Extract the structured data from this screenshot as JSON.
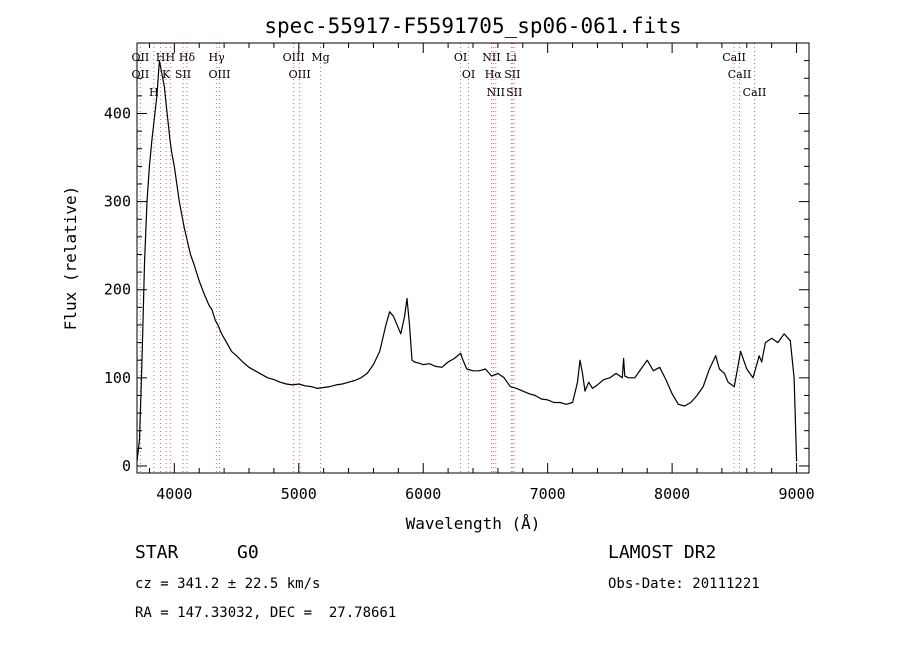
{
  "chart_data": {
    "type": "line",
    "title": "spec-55917-F5591705_sp06-061.fits",
    "xlabel": "Wavelength (Å)",
    "ylabel": "Flux (relative)",
    "xlim": [
      3700,
      9100
    ],
    "ylim": [
      -8,
      480
    ],
    "x_ticks": [
      4000,
      5000,
      6000,
      7000,
      8000,
      9000
    ],
    "y_ticks": [
      0,
      100,
      200,
      300,
      400
    ],
    "grid": false,
    "series": [
      {
        "color": "#000000",
        "x": [
          3700,
          3720,
          3740,
          3760,
          3780,
          3800,
          3820,
          3840,
          3860,
          3880,
          3900,
          3920,
          3935,
          3950,
          3965,
          3980,
          4000,
          4020,
          4040,
          4060,
          4080,
          4100,
          4130,
          4160,
          4200,
          4240,
          4280,
          4300,
          4330,
          4350,
          4380,
          4420,
          4460,
          4500,
          4550,
          4600,
          4650,
          4700,
          4750,
          4800,
          4850,
          4900,
          4950,
          5000,
          5050,
          5100,
          5150,
          5200,
          5250,
          5300,
          5350,
          5400,
          5450,
          5500,
          5550,
          5600,
          5650,
          5700,
          5730,
          5760,
          5790,
          5820,
          5850,
          5870,
          5890,
          5910,
          5930,
          5960,
          6000,
          6050,
          6100,
          6150,
          6200,
          6250,
          6300,
          6320,
          6350,
          6400,
          6450,
          6500,
          6550,
          6600,
          6650,
          6700,
          6750,
          6800,
          6850,
          6900,
          6950,
          7000,
          7050,
          7100,
          7150,
          7200,
          7240,
          7260,
          7280,
          7300,
          7330,
          7360,
          7400,
          7450,
          7500,
          7550,
          7600,
          7610,
          7620,
          7650,
          7700,
          7750,
          7800,
          7850,
          7900,
          7950,
          8000,
          8050,
          8100,
          8150,
          8200,
          8250,
          8300,
          8350,
          8380,
          8420,
          8450,
          8500,
          8550,
          8600,
          8650,
          8700,
          8720,
          8750,
          8800,
          8850,
          8900,
          8950,
          8980,
          9000
        ],
        "values": [
          5,
          30,
          120,
          230,
          300,
          340,
          370,
          395,
          420,
          460,
          445,
          430,
          410,
          390,
          370,
          355,
          340,
          320,
          300,
          285,
          270,
          258,
          240,
          228,
          210,
          195,
          182,
          178,
          165,
          160,
          150,
          140,
          130,
          125,
          118,
          112,
          108,
          104,
          100,
          98,
          95,
          93,
          92,
          93,
          91,
          90,
          88,
          89,
          90,
          92,
          93,
          95,
          97,
          100,
          105,
          115,
          130,
          160,
          175,
          170,
          160,
          150,
          170,
          190,
          160,
          120,
          118,
          117,
          115,
          116,
          113,
          112,
          118,
          122,
          128,
          120,
          110,
          108,
          108,
          110,
          102,
          105,
          100,
          90,
          88,
          85,
          82,
          80,
          76,
          75,
          72,
          72,
          70,
          72,
          95,
          120,
          105,
          85,
          95,
          88,
          92,
          98,
          100,
          105,
          100,
          122,
          102,
          100,
          100,
          110,
          120,
          108,
          112,
          98,
          82,
          70,
          68,
          72,
          80,
          90,
          110,
          125,
          110,
          105,
          95,
          90,
          130,
          110,
          100,
          125,
          118,
          140,
          145,
          140,
          150,
          142,
          100,
          5
        ],
        "comment": "values read off the plot (approximate)"
      }
    ],
    "line_markers": [
      {
        "x": 3727,
        "labels": [
          "OII",
          "OII"
        ]
      },
      {
        "x": 3835,
        "labels": [
          "H"
        ]
      },
      {
        "x": 3889,
        "labels": [
          "H"
        ]
      },
      {
        "x": 3934,
        "labels": [
          "K"
        ]
      },
      {
        "x": 3968,
        "labels": [
          "H"
        ]
      },
      {
        "x": 4070,
        "labels": [
          "SII"
        ]
      },
      {
        "x": 4102,
        "labels": [
          "Hδ"
        ]
      },
      {
        "x": 4340,
        "labels": [
          "Hγ"
        ]
      },
      {
        "x": 4363,
        "labels": [
          "OIII"
        ]
      },
      {
        "x": 4959,
        "labels": [
          "OIII"
        ]
      },
      {
        "x": 5007,
        "labels": [
          "OIII"
        ]
      },
      {
        "x": 5175,
        "labels": [
          "Mg"
        ]
      },
      {
        "x": 6300,
        "labels": [
          "OI"
        ]
      },
      {
        "x": 6364,
        "labels": [
          "OI"
        ]
      },
      {
        "x": 6548,
        "labels": [
          "NII"
        ]
      },
      {
        "x": 6563,
        "labels": [
          "Hα"
        ]
      },
      {
        "x": 6583,
        "labels": [
          "NII"
        ]
      },
      {
        "x": 6708,
        "labels": [
          "Li"
        ]
      },
      {
        "x": 6716,
        "labels": [
          "SII"
        ]
      },
      {
        "x": 6731,
        "labels": [
          "SII"
        ]
      },
      {
        "x": 8498,
        "labels": [
          "CaII"
        ]
      },
      {
        "x": 8542,
        "labels": [
          "CaII"
        ]
      },
      {
        "x": 8662,
        "labels": [
          "CaII"
        ]
      }
    ]
  },
  "info": {
    "class_label": "STAR",
    "subclass_label": "G0",
    "survey_label": "LAMOST DR2",
    "cz_text": "cz = 341.2 ± 22.5 km/s",
    "obs_date_text": "Obs-Date: 20111221",
    "radec_text": "RA = 147.33032, DEC =  27.78661"
  }
}
